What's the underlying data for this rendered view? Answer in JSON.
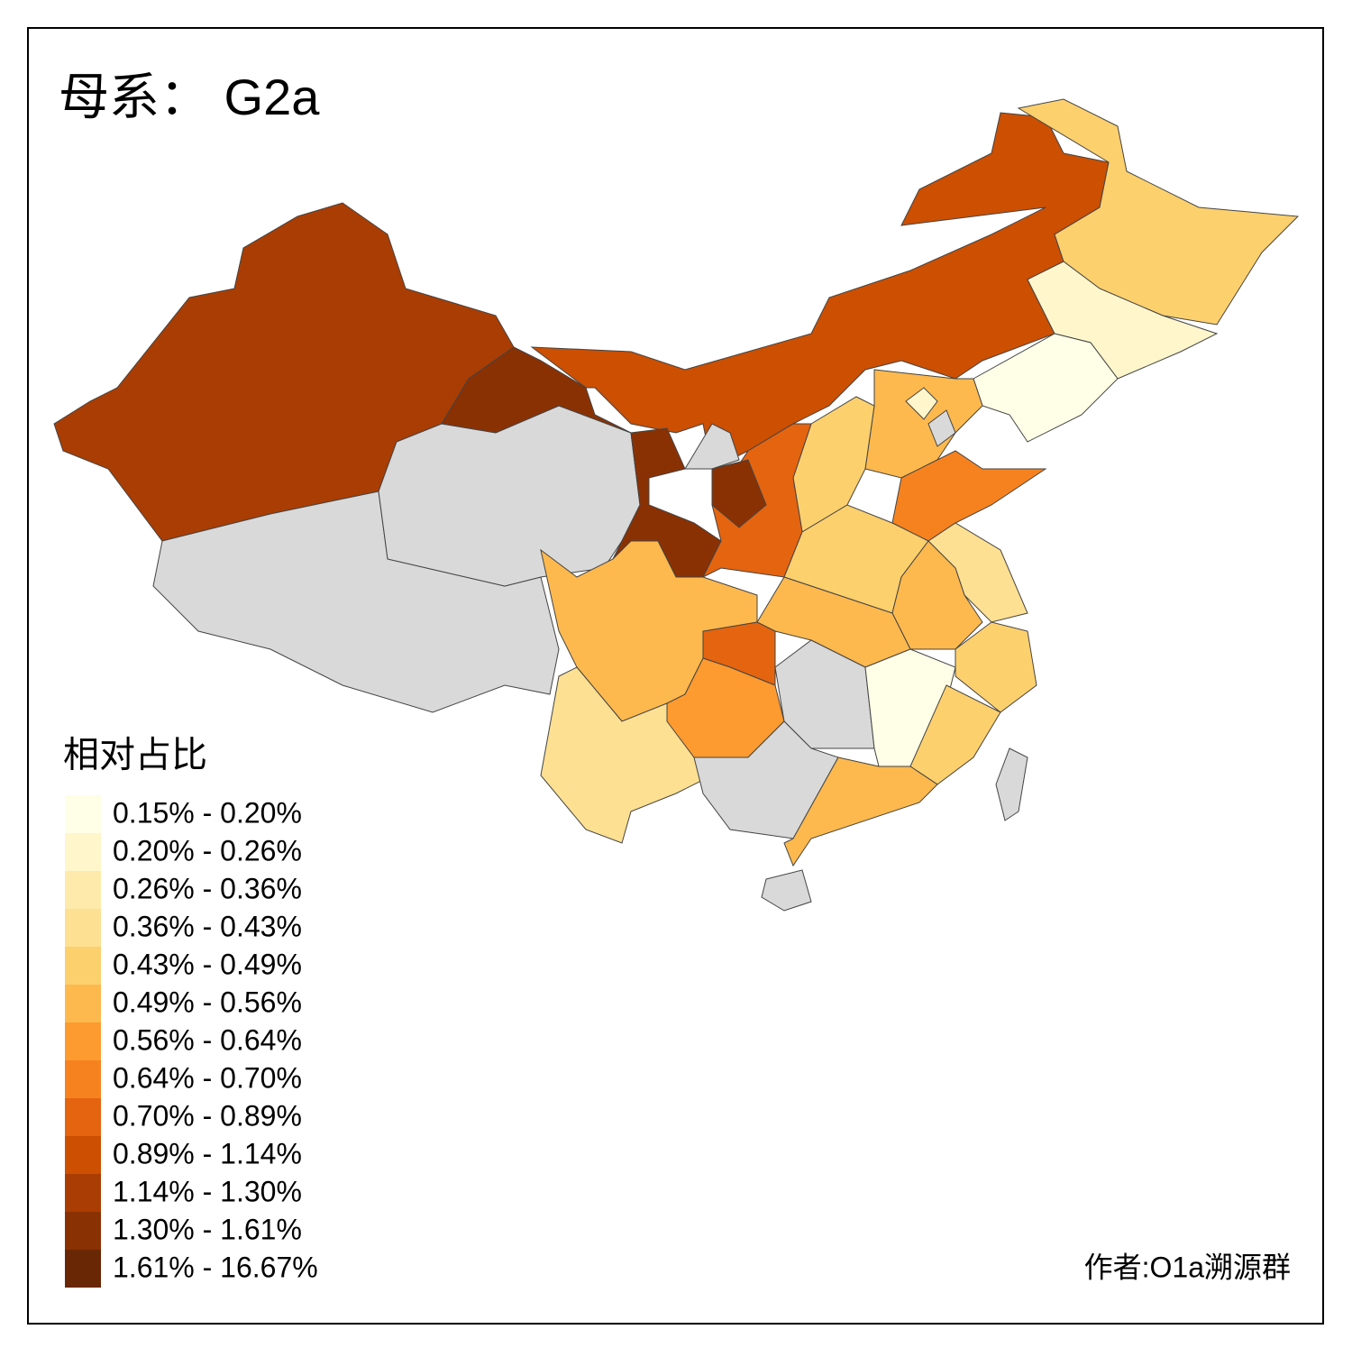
{
  "title": "母系： G2a",
  "legend": {
    "title": "相对占比",
    "items": [
      {
        "label": "0.15% - 0.20%",
        "color": "#fffee6"
      },
      {
        "label": "0.20% - 0.26%",
        "color": "#fff6cc"
      },
      {
        "label": "0.26% - 0.36%",
        "color": "#feeaaa"
      },
      {
        "label": "0.36% - 0.43%",
        "color": "#fde092"
      },
      {
        "label": "0.43% - 0.49%",
        "color": "#fdd06e"
      },
      {
        "label": "0.49% - 0.56%",
        "color": "#fdb94e"
      },
      {
        "label": "0.56% - 0.64%",
        "color": "#fd9a30"
      },
      {
        "label": "0.64% - 0.70%",
        "color": "#f6821f"
      },
      {
        "label": "0.70% - 0.89%",
        "color": "#e5640f"
      },
      {
        "label": "0.89% - 1.14%",
        "color": "#cc4f02"
      },
      {
        "label": "1.14% - 1.30%",
        "color": "#aa3d03"
      },
      {
        "label": "1.30% - 1.61%",
        "color": "#8a3104"
      },
      {
        "label": "1.61% - 16.67%",
        "color": "#6a2705"
      }
    ]
  },
  "no_data_color": "#d9d9d9",
  "author": "作者:O1a溯源群"
}
